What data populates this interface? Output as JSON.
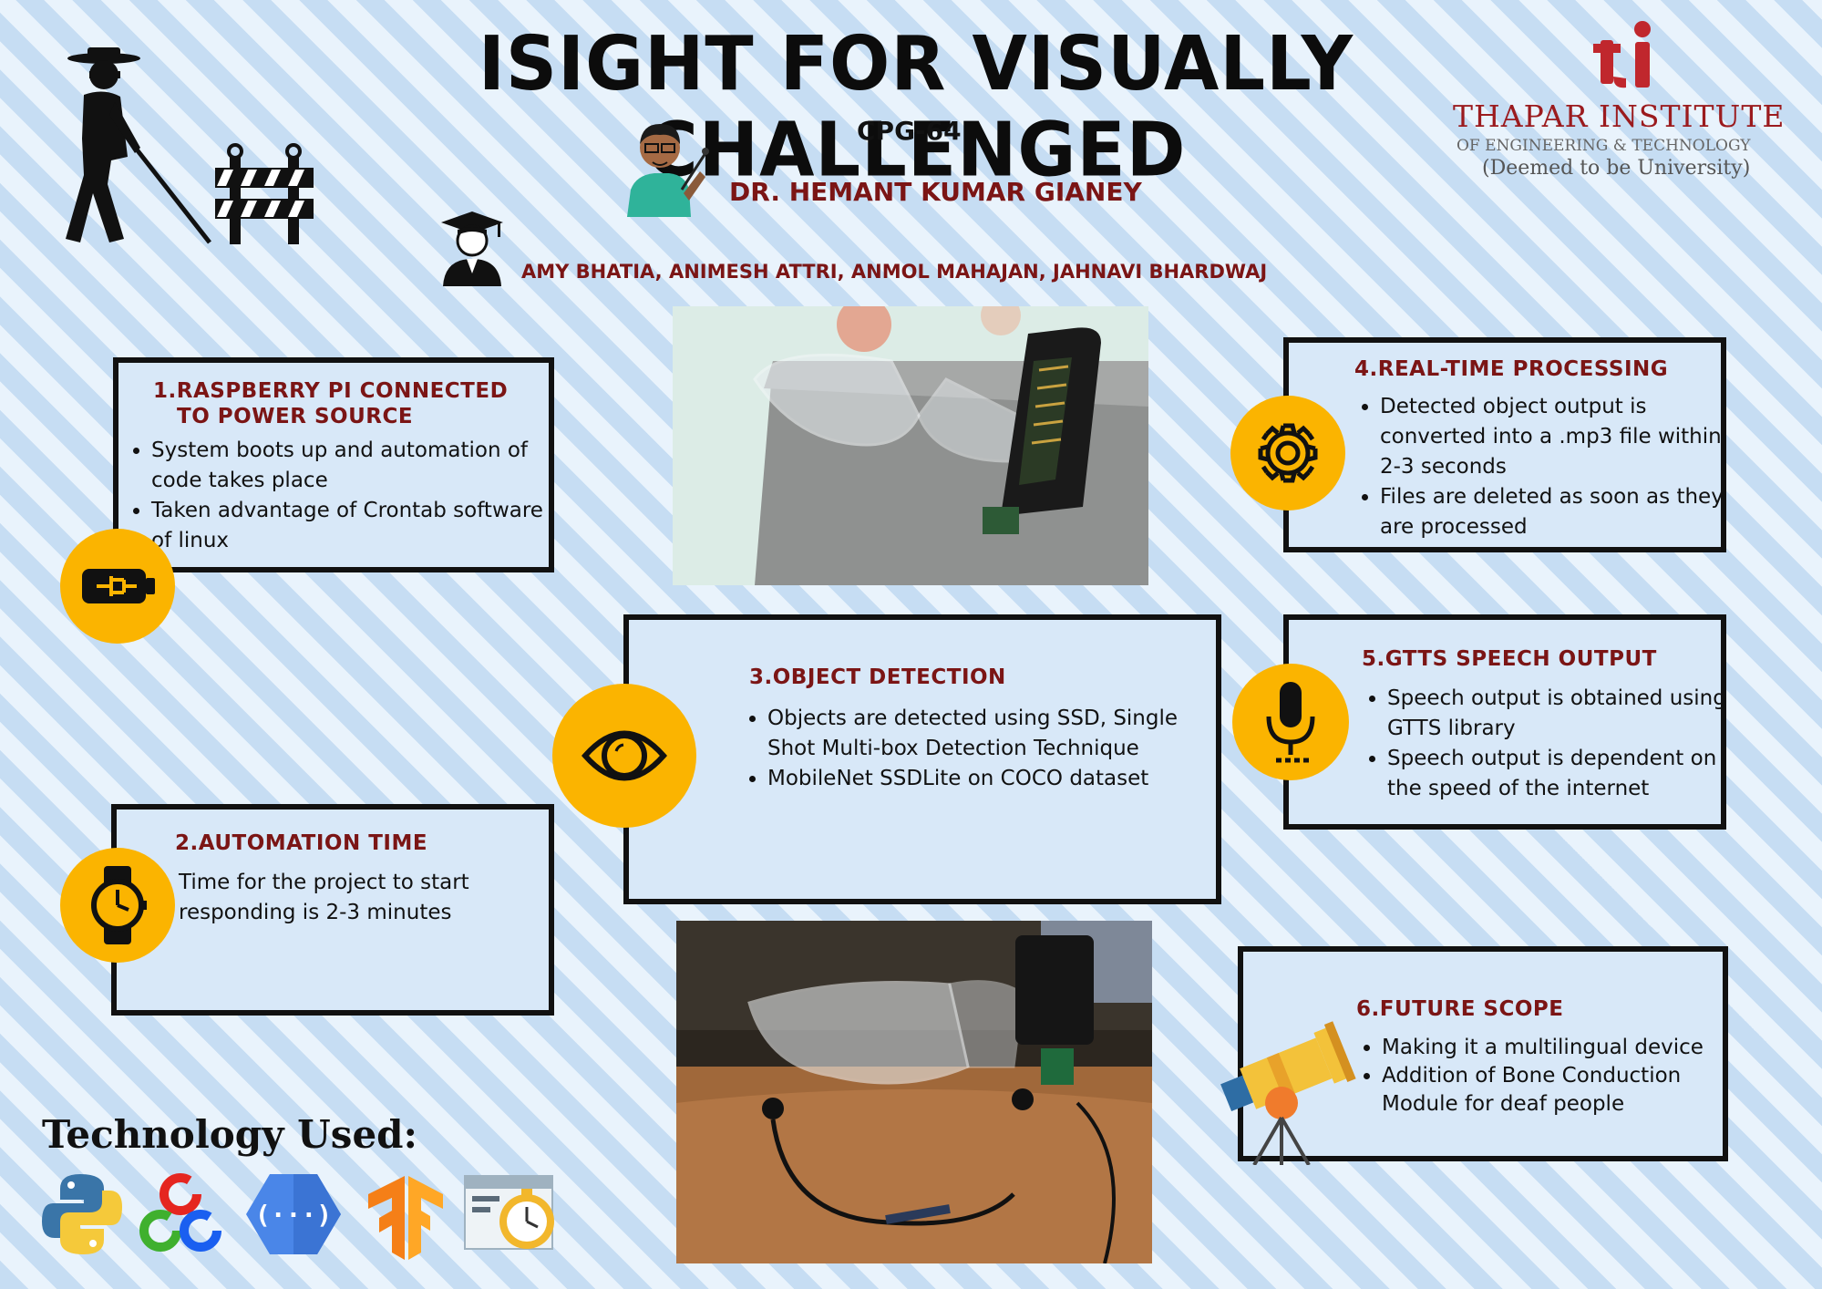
{
  "header": {
    "title": "ISIGHT FOR VISUALLY CHALLENGED",
    "group": "CPG-64",
    "mentor": "DR. HEMANT KUMAR GIANEY",
    "students": "AMY BHATIA, ANIMESH ATTRI, ANMOL MAHAJAN, JAHNAVI BHARDWAJ"
  },
  "logo": {
    "name": "THAPAR INSTITUTE",
    "sub": "OF ENGINEERING & TECHNOLOGY",
    "sub2": "(Deemed to be University)"
  },
  "sections": {
    "s1": {
      "title_line1": "1.RASPBERRY PI CONNECTED",
      "title_line2": "TO POWER SOURCE",
      "items": [
        "System boots up and automation of code takes place",
        "Taken advantage of Crontab software of linux"
      ]
    },
    "s2": {
      "title": "2.AUTOMATION TIME",
      "items": [
        "Time for the project to start responding is 2-3 minutes"
      ]
    },
    "s3": {
      "title": "3.OBJECT DETECTION",
      "items": [
        "Objects are detected using SSD, Single Shot Multi-box Detection Technique",
        "MobileNet SSDLite on COCO dataset"
      ]
    },
    "s4": {
      "title": "4.REAL-TIME PROCESSING",
      "items": [
        "Detected object output is converted into a .mp3 file within 2-3 seconds",
        "Files are deleted as soon as they are processed"
      ]
    },
    "s5": {
      "title": "5.GTTS SPEECH OUTPUT",
      "items": [
        "Speech output is obtained using GTTS library",
        "Speech output is dependent on the speed of the internet"
      ]
    },
    "s6": {
      "title": "6.FUTURE SCOPE",
      "items": [
        "Making it a multilingual device",
        "Addition of Bone Conduction Module for deaf people"
      ]
    }
  },
  "technology": {
    "title": "Technology Used:"
  },
  "colors": {
    "accent": "#fbb400",
    "title_red": "#7b1515",
    "logo_red": "#9b1b1e"
  }
}
